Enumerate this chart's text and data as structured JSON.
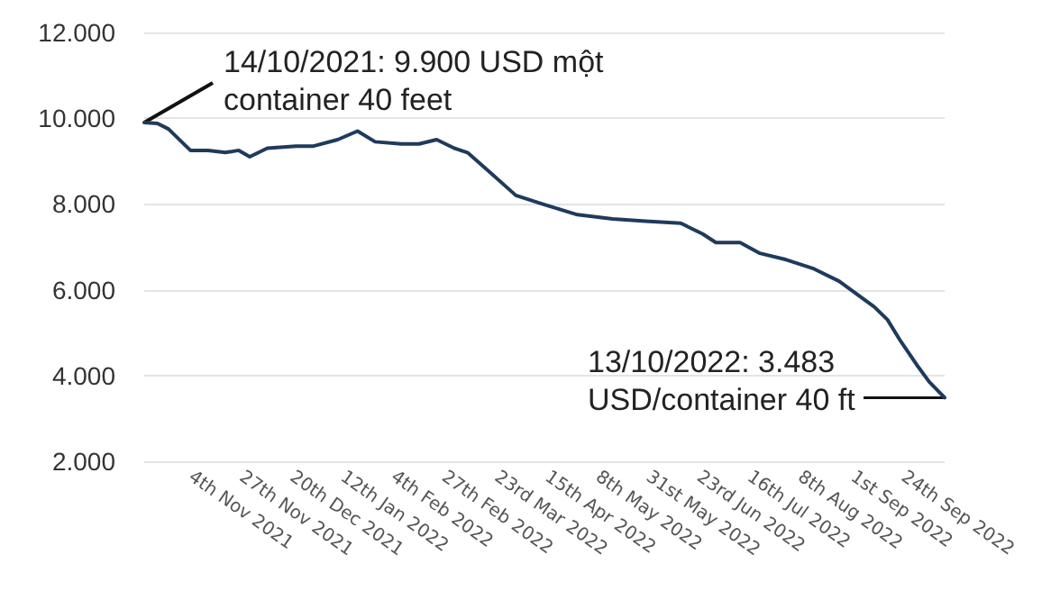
{
  "chart_data": {
    "type": "line",
    "x": [
      "2021-10-14",
      "2021-10-20",
      "2021-10-25",
      "2021-11-04",
      "2021-11-12",
      "2021-11-20",
      "2021-11-26",
      "2021-12-01",
      "2021-12-09",
      "2021-12-22",
      "2021-12-30",
      "2022-01-10",
      "2022-01-19",
      "2022-01-27",
      "2022-02-08",
      "2022-02-16",
      "2022-02-24",
      "2022-03-04",
      "2022-03-10",
      "2022-03-20",
      "2022-04-01",
      "2022-04-13",
      "2022-04-29",
      "2022-05-15",
      "2022-05-30",
      "2022-06-15",
      "2022-06-25",
      "2022-07-01",
      "2022-07-12",
      "2022-07-21",
      "2022-08-02",
      "2022-08-14",
      "2022-08-26",
      "2022-09-03",
      "2022-09-11",
      "2022-09-17",
      "2022-09-23",
      "2022-10-01",
      "2022-10-06",
      "2022-10-13"
    ],
    "series": [
      {
        "color": "#1f3a5c",
        "values": [
          9900,
          9880,
          9750,
          9250,
          9250,
          9200,
          9250,
          9100,
          9300,
          9350,
          9350,
          9500,
          9700,
          9450,
          9400,
          9400,
          9500,
          9300,
          9200,
          8750,
          8200,
          8000,
          7750,
          7650,
          7600,
          7550,
          7300,
          7100,
          7100,
          6850,
          6700,
          6500,
          6200,
          5900,
          5600,
          5300,
          4800,
          4200,
          3850,
          3483
        ]
      }
    ],
    "xlim": [
      "2021-10-14",
      "2022-10-13"
    ],
    "xticks": [
      {
        "value": "2021-11-04",
        "label": "4th Nov 2021"
      },
      {
        "value": "2021-11-27",
        "label": "27th Nov 2021"
      },
      {
        "value": "2021-12-20",
        "label": "20th Dec 2021"
      },
      {
        "value": "2022-01-12",
        "label": "12th Jan 2022"
      },
      {
        "value": "2022-02-04",
        "label": "4th Feb 2022"
      },
      {
        "value": "2022-02-27",
        "label": "27th Feb 2022"
      },
      {
        "value": "2022-03-23",
        "label": "23rd Mar 2022"
      },
      {
        "value": "2022-04-15",
        "label": "15th Apr 2022"
      },
      {
        "value": "2022-05-08",
        "label": "8th May 2022"
      },
      {
        "value": "2022-05-31",
        "label": "31st May 2022"
      },
      {
        "value": "2022-06-23",
        "label": "23rd Jun 2022"
      },
      {
        "value": "2022-07-16",
        "label": "16th Jul 2022"
      },
      {
        "value": "2022-08-08",
        "label": "8th Aug 2022"
      },
      {
        "value": "2022-09-01",
        "label": "1st Sep 2022"
      },
      {
        "value": "2022-09-24",
        "label": "24th Sep 2022"
      }
    ],
    "ylim": [
      2000,
      12000
    ],
    "yticks": [
      {
        "value": 2000,
        "label": "2.000"
      },
      {
        "value": 4000,
        "label": "4.000"
      },
      {
        "value": 6000,
        "label": "6.000"
      },
      {
        "value": 8000,
        "label": "8.000"
      },
      {
        "value": 10000,
        "label": "10.000"
      },
      {
        "value": 12000,
        "label": "12.000"
      }
    ],
    "grid": "y",
    "marker": "none",
    "line_style": "solid",
    "annotations": [
      {
        "text": "14/10/2021: 9.900 USD một\ncontainer 40 feet",
        "x": "2021-10-14",
        "y": 9900
      },
      {
        "text": "13/10/2022: 3.483\nUSD/container 40 ft",
        "x": "2022-10-13",
        "y": 3483
      }
    ]
  }
}
